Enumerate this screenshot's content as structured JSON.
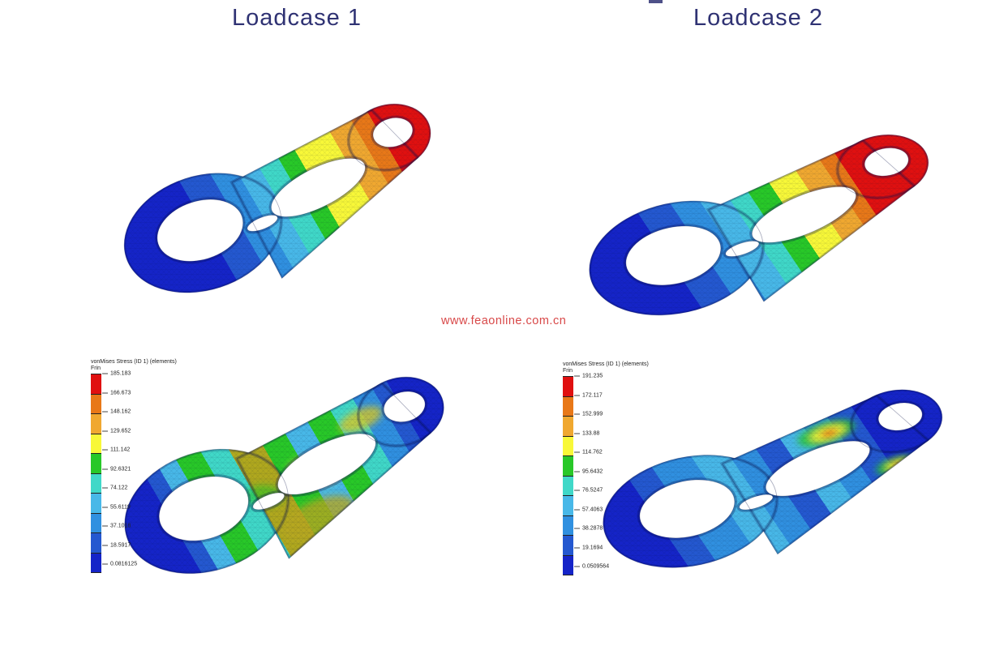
{
  "titles": {
    "loadcase1": "Loadcase 1",
    "loadcase2": "Loadcase 2"
  },
  "watermark": {
    "text": "www.feaonline.com.cn",
    "color": "#d84848"
  },
  "colors": {
    "title_text": "#2f3273",
    "background": "#ffffff",
    "legend_bands_top_to_bottom": [
      "#e01010",
      "#e87818",
      "#f0a830",
      "#f8f838",
      "#28c828",
      "#40d8c8",
      "#48b8e8",
      "#3090e0",
      "#2458d0",
      "#1524c8"
    ]
  },
  "legends": [
    {
      "name": "stress-legend-loadcase-1",
      "title": "vonMises Stress (ID 1) (elements)",
      "subtitle": "Frin",
      "tick_values": [
        "185.183",
        "166.673",
        "148.162",
        "129.652",
        "111.142",
        "92.6321",
        "74.122",
        "55.6119",
        "37.1018",
        "18.5917",
        "0.0816125"
      ]
    },
    {
      "name": "stress-legend-loadcase-2",
      "title": "vonMises Stress (ID 1) (elements)",
      "subtitle": "Frin",
      "tick_values": [
        "191.235",
        "172.117",
        "152.999",
        "133.88",
        "114.762",
        "95.6432",
        "76.5247",
        "57.4063",
        "38.2878",
        "19.1694",
        "0.0509564"
      ]
    }
  ],
  "models": [
    {
      "name": "loadcase-1-deformation-contour",
      "position": "top-left"
    },
    {
      "name": "loadcase-2-deformation-contour",
      "position": "top-right"
    },
    {
      "name": "loadcase-1-von-mises-stress-contour",
      "position": "bottom-left"
    },
    {
      "name": "loadcase-2-von-mises-stress-contour",
      "position": "bottom-right"
    }
  ]
}
